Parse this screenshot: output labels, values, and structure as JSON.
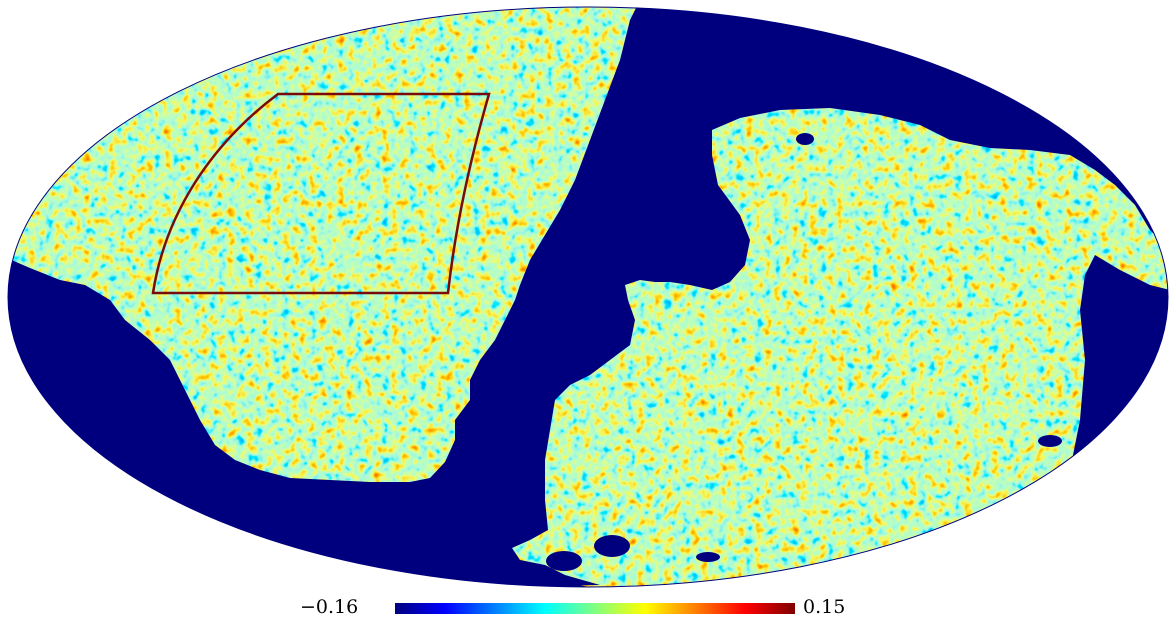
{
  "map": {
    "projection": "mollweide",
    "colormap": "jet",
    "mask_color": "#00007f",
    "region_outline_color": "#7a0b0b"
  },
  "colorbar": {
    "min_label": "−0.16",
    "max_label": "0.15",
    "min_value": -0.16,
    "max_value": 0.15,
    "stops": [
      "#00007f",
      "#0000ff",
      "#0080ff",
      "#00ffff",
      "#80ff80",
      "#ffff00",
      "#ff8000",
      "#ff0000",
      "#7f0000"
    ]
  }
}
